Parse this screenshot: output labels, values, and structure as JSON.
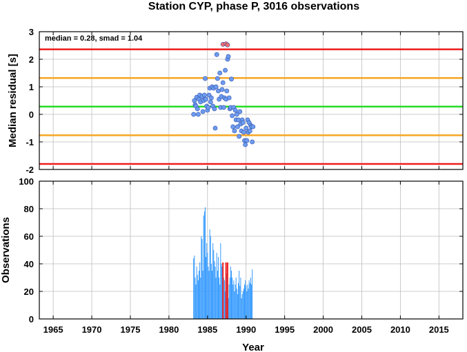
{
  "chart_data": {
    "title": "Station CYP, phase P, 3016 observations",
    "xlabel": "Year",
    "x_ticks": [
      1965,
      1970,
      1975,
      1980,
      1985,
      1990,
      1995,
      2000,
      2005,
      2010,
      2015
    ],
    "xlim": [
      1963.2,
      2018.1
    ],
    "grid": true,
    "panels": [
      {
        "type": "scatter",
        "ylabel": "Median residual [s]",
        "ylim": [
          -2,
          3
        ],
        "y_ticks": [
          -2,
          -1,
          0,
          1,
          2,
          3
        ],
        "annotation": "median = 0.28, smad = 1.04",
        "reference_lines": [
          {
            "name": "upper-outlier-limit",
            "y": 2.36,
            "color": "#ee1c1c"
          },
          {
            "name": "upper-smad-limit",
            "y": 1.32,
            "color": "#f5a623"
          },
          {
            "name": "median-line",
            "y": 0.28,
            "color": "#22dd22"
          },
          {
            "name": "lower-smad-limit",
            "y": -0.76,
            "color": "#f5a623"
          },
          {
            "name": "lower-outlier-limit",
            "y": -1.8,
            "color": "#ee1c1c"
          }
        ],
        "series": [
          {
            "kind": "normal",
            "color": "#6d9cf0",
            "points": [
              [
                1983.2,
                0.0
              ],
              [
                1983.3,
                0.5
              ],
              [
                1983.4,
                0.35
              ],
              [
                1983.5,
                0.3
              ],
              [
                1983.6,
                0.62
              ],
              [
                1983.7,
                0.2
              ],
              [
                1983.8,
                0.0
              ],
              [
                1983.9,
                0.55
              ],
              [
                1984.0,
                0.7
              ],
              [
                1984.1,
                0.45
              ],
              [
                1984.3,
                0.65
              ],
              [
                1984.4,
                0.1
              ],
              [
                1984.5,
                0.5
              ],
              [
                1984.6,
                0.7
              ],
              [
                1984.7,
                1.3
              ],
              [
                1984.8,
                0.55
              ],
              [
                1984.9,
                0.3
              ],
              [
                1985.0,
                0.15
              ],
              [
                1985.1,
                0.25
              ],
              [
                1985.2,
                0.7
              ],
              [
                1985.3,
                0.95
              ],
              [
                1985.4,
                0.45
              ],
              [
                1985.5,
                0.6
              ],
              [
                1985.6,
                1.0
              ],
              [
                1985.7,
                0.3
              ],
              [
                1985.8,
                0.95
              ],
              [
                1985.9,
                0.2
              ],
              [
                1986.0,
                -0.5
              ],
              [
                1986.1,
                1.0
              ],
              [
                1986.2,
                2.17
              ],
              [
                1986.3,
                1.3
              ],
              [
                1986.4,
                0.85
              ],
              [
                1986.5,
                0.55
              ],
              [
                1986.6,
                1.5
              ],
              [
                1986.7,
                0.25
              ],
              [
                1986.8,
                0.65
              ],
              [
                1986.9,
                0.9
              ],
              [
                1987.0,
                1.15
              ],
              [
                1987.1,
                0.25
              ],
              [
                1987.2,
                0.6
              ],
              [
                1987.3,
                1.6
              ],
              [
                1987.4,
                0.55
              ],
              [
                1987.5,
                0.85
              ],
              [
                1987.6,
                2.0
              ],
              [
                1987.7,
                2.1
              ],
              [
                1987.8,
                0.6
              ],
              [
                1987.9,
                0.2
              ],
              [
                1988.0,
                0.25
              ],
              [
                1988.1,
                1.28
              ],
              [
                1988.2,
                -0.05
              ],
              [
                1988.3,
                -0.45
              ],
              [
                1988.4,
                0.25
              ],
              [
                1988.5,
                -0.6
              ],
              [
                1988.6,
                0.15
              ],
              [
                1988.7,
                -0.2
              ],
              [
                1988.8,
                0.0
              ],
              [
                1988.9,
                -0.45
              ],
              [
                1989.0,
                -0.2
              ],
              [
                1989.1,
                -0.8
              ],
              [
                1989.2,
                0.1
              ],
              [
                1989.3,
                -0.35
              ],
              [
                1989.4,
                -0.6
              ],
              [
                1989.5,
                -0.2
              ],
              [
                1989.6,
                -0.3
              ],
              [
                1989.7,
                -0.65
              ],
              [
                1989.8,
                -0.95
              ],
              [
                1989.9,
                -1.1
              ],
              [
                1990.0,
                -0.5
              ],
              [
                1990.1,
                -0.95
              ],
              [
                1990.2,
                -0.2
              ],
              [
                1990.3,
                -0.65
              ],
              [
                1990.4,
                -0.3
              ],
              [
                1990.5,
                -0.6
              ],
              [
                1990.6,
                -0.4
              ],
              [
                1990.7,
                -0.45
              ],
              [
                1990.8,
                -1.0
              ],
              [
                1990.9,
                -0.45
              ]
            ]
          },
          {
            "kind": "outlier",
            "color": "#f26d6d",
            "points": [
              [
                1987.0,
                2.54
              ],
              [
                1987.4,
                2.56
              ],
              [
                1987.6,
                2.52
              ]
            ]
          }
        ]
      },
      {
        "type": "bar",
        "ylabel": "Observations",
        "ylim": [
          0,
          100
        ],
        "y_ticks": [
          0,
          20,
          40,
          60,
          80,
          100
        ],
        "series": [
          {
            "kind": "normal",
            "color": "#3399ff",
            "x_start": 1983.2,
            "x_step": 0.1,
            "values": [
              44,
              46,
              30,
              25,
              38,
              32,
              28,
              35,
              41,
              30,
              60,
              58,
              35,
              75,
              78,
              81,
              45,
              55,
              48,
              38,
              35,
              65,
              60,
              40,
              35,
              55,
              50,
              42,
              38,
              30,
              48,
              35,
              45,
              30,
              25,
              55,
              40,
              38,
              35,
              30,
              28,
              20,
              40,
              33,
              20,
              15,
              25,
              30,
              38,
              35,
              30,
              25,
              28,
              20,
              25,
              30,
              22,
              18,
              26,
              35,
              24,
              30,
              15,
              18,
              20,
              22,
              25,
              28,
              24,
              20,
              25,
              22,
              28,
              26,
              30,
              25,
              36
            ]
          },
          {
            "kind": "outlier",
            "color": "#ee2222",
            "bars": [
              [
                1987.0,
                41
              ],
              [
                1987.4,
                41
              ],
              [
                1987.6,
                41
              ]
            ]
          }
        ]
      }
    ]
  }
}
